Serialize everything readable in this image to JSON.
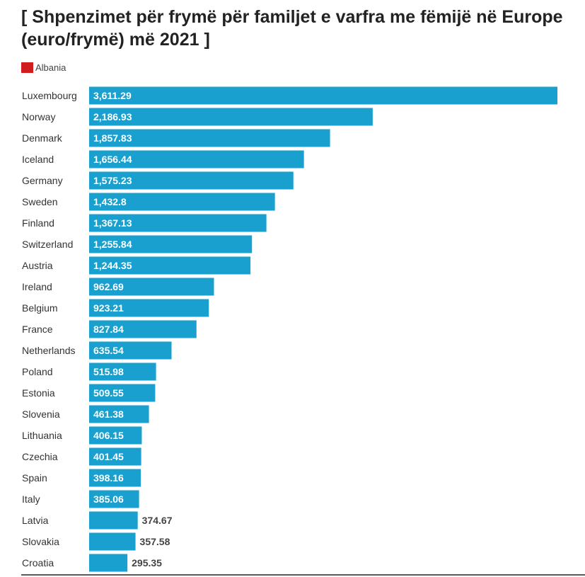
{
  "chart_data": {
    "type": "bar",
    "orientation": "horizontal",
    "title": "[ Shpenzimet për frymë për familjet e varfra me fëmijë në Europe (euro/frymë) më 2021 ]",
    "legend": [
      {
        "name": "Albania",
        "color": "#d01c1f"
      }
    ],
    "legend_placement": "top-left",
    "categories": [
      "Luxembourg",
      "Norway",
      "Denmark",
      "Iceland",
      "Germany",
      "Sweden",
      "Finland",
      "Switzerland",
      "Austria",
      "Ireland",
      "Belgium",
      "France",
      "Netherlands",
      "Poland",
      "Estonia",
      "Slovenia",
      "Lithuania",
      "Czechia",
      "Spain",
      "Italy",
      "Latvia",
      "Slovakia",
      "Croatia"
    ],
    "values": [
      3611.29,
      2186.93,
      1857.83,
      1656.44,
      1575.23,
      1432.8,
      1367.13,
      1255.84,
      1244.35,
      962.69,
      923.21,
      827.84,
      635.54,
      515.98,
      509.55,
      461.38,
      406.15,
      401.45,
      398.16,
      385.06,
      374.67,
      357.58,
      295.35
    ],
    "value_labels": [
      "3,611.29",
      "2,186.93",
      "1,857.83",
      "1,656.44",
      "1,575.23",
      "1,432.8",
      "1,367.13",
      "1,255.84",
      "1,244.35",
      "962.69",
      "923.21",
      "827.84",
      "635.54",
      "515.98",
      "509.55",
      "461.38",
      "406.15",
      "401.45",
      "398.16",
      "385.06",
      "374.67",
      "357.58",
      "295.35"
    ],
    "bar_color": "#1aa0cf",
    "xlim": [
      0,
      3611.29
    ],
    "grid": false
  }
}
